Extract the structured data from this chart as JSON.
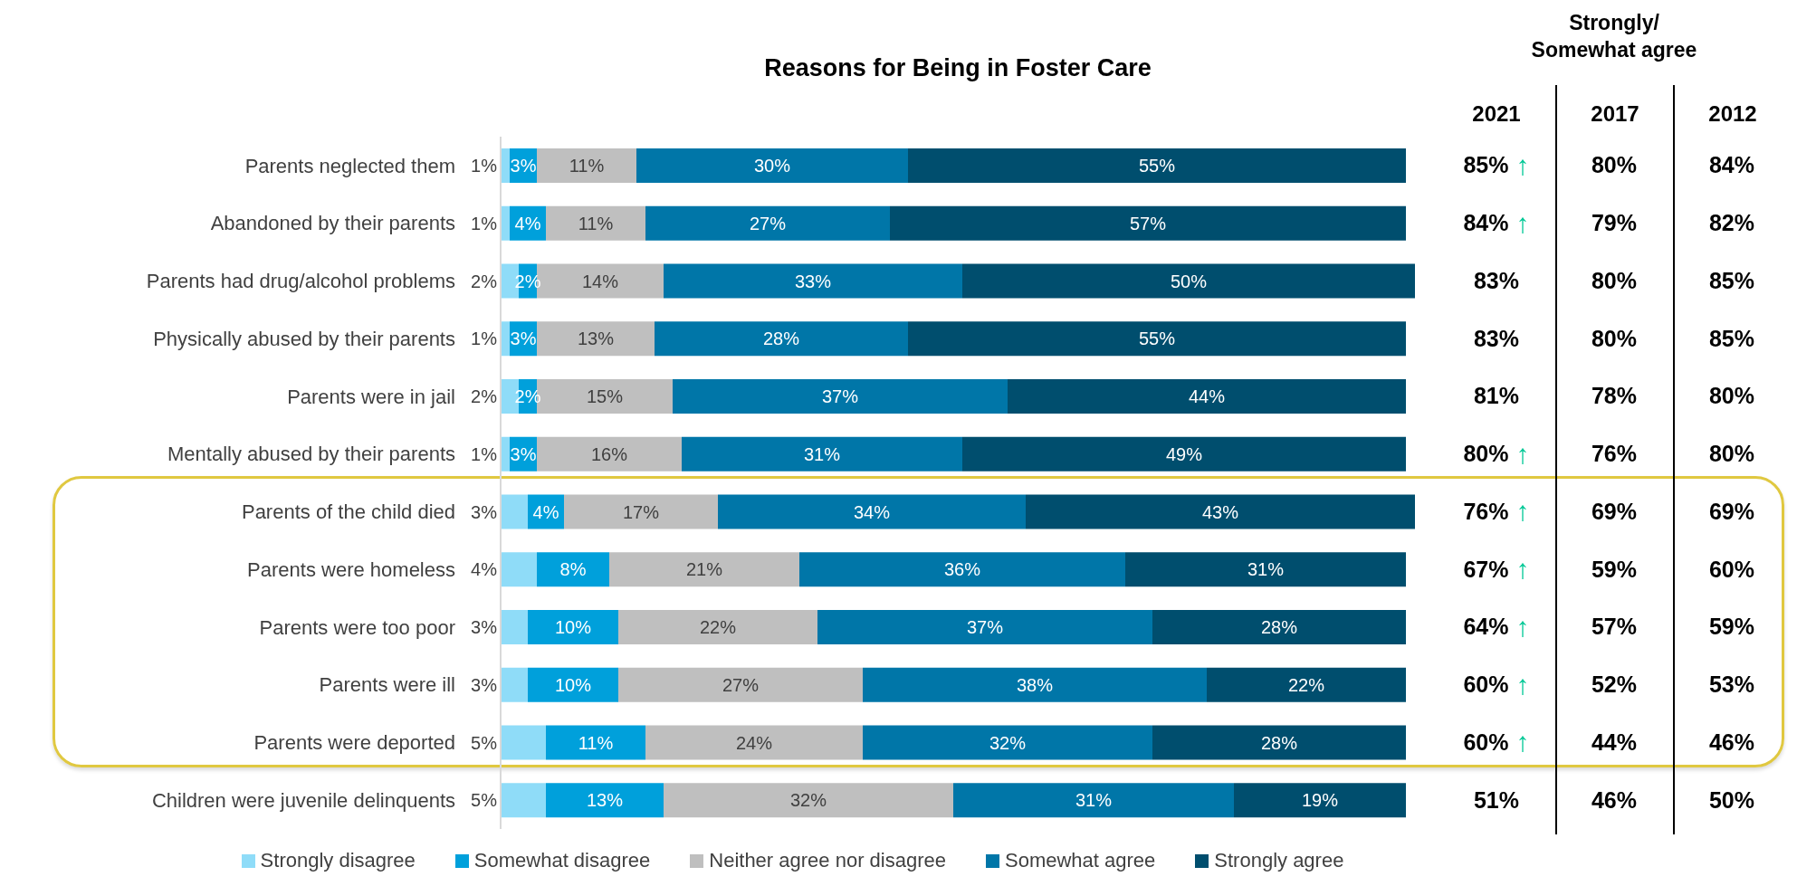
{
  "chart_data": [
    {
      "type": "bar",
      "orientation": "horizontal",
      "stacked": true,
      "title": "Reasons for Being in Foster Care",
      "categories": [
        "Parents neglected them",
        "Abandoned by their parents",
        "Parents had drug/alcohol problems",
        "Physically abused by their parents",
        "Parents were in jail",
        "Mentally abused by their parents",
        "Parents of the child died",
        "Parents were homeless",
        "Parents were too poor",
        "Parents were ill",
        "Parents were deported",
        "Children were juvenile delinquents"
      ],
      "series": [
        {
          "name": "Strongly disagree",
          "color": "#8fdcf8",
          "values": [
            1,
            1,
            2,
            1,
            2,
            1,
            3,
            4,
            3,
            3,
            5,
            5
          ],
          "value_labels": [
            "1%",
            "1%",
            "2%",
            "1%",
            "2%",
            "1%",
            "3%",
            "4%",
            "3%",
            "3%",
            "5%",
            "5%"
          ]
        },
        {
          "name": "Somewhat disagree",
          "color": "#00a0db",
          "values": [
            3,
            4,
            2,
            3,
            2,
            3,
            4,
            8,
            10,
            10,
            11,
            13
          ],
          "value_labels": [
            "3%",
            "4%",
            "2%",
            "3%",
            "2%",
            "3%",
            "4%",
            "8%",
            "10%",
            "10%",
            "11%",
            "13%"
          ]
        },
        {
          "name": "Neither agree nor disagree",
          "color": "#bfbfbf",
          "values": [
            11,
            11,
            14,
            13,
            15,
            16,
            17,
            21,
            22,
            27,
            24,
            32
          ],
          "value_labels": [
            "11%",
            "11%",
            "14%",
            "13%",
            "15%",
            "16%",
            "17%",
            "21%",
            "22%",
            "27%",
            "24%",
            "32%"
          ]
        },
        {
          "name": "Somewhat agree",
          "color": "#0076a8",
          "values": [
            30,
            27,
            33,
            28,
            37,
            31,
            34,
            36,
            37,
            38,
            32,
            31
          ],
          "value_labels": [
            "30%",
            "27%",
            "33%",
            "28%",
            "37%",
            "31%",
            "34%",
            "36%",
            "37%",
            "38%",
            "32%",
            "31%"
          ]
        },
        {
          "name": "Strongly agree",
          "color": "#004e6e",
          "values": [
            55,
            57,
            50,
            55,
            44,
            49,
            43,
            31,
            28,
            22,
            28,
            19
          ],
          "value_labels": [
            "55%",
            "57%",
            "50%",
            "55%",
            "44%",
            "49%",
            "43%",
            "31%",
            "28%",
            "22%",
            "28%",
            "19%"
          ]
        }
      ],
      "legend": "bottom"
    },
    {
      "type": "other",
      "title": "Strongly/\nSomewhat agree",
      "categories": [
        "2021",
        "2017",
        "2012"
      ],
      "cell_labels": [
        [
          "85% ↑",
          "80%",
          "84%"
        ],
        [
          "84% ↑",
          "79%",
          "82%"
        ],
        [
          "83%",
          "80%",
          "85%"
        ],
        [
          "83%",
          "80%",
          "85%"
        ],
        [
          "81%",
          "78%",
          "80%"
        ],
        [
          "80% ↑",
          "76%",
          "80%"
        ],
        [
          "76% ↑",
          "69%",
          "69%"
        ],
        [
          "67% ↑",
          "59%",
          "60%"
        ],
        [
          "64% ↑",
          "57%",
          "59%"
        ],
        [
          "60% ↑",
          "52%",
          "53%"
        ],
        [
          "60% ↑",
          "44%",
          "46%"
        ],
        [
          "51%",
          "46%",
          "50%"
        ]
      ]
    }
  ]
}
